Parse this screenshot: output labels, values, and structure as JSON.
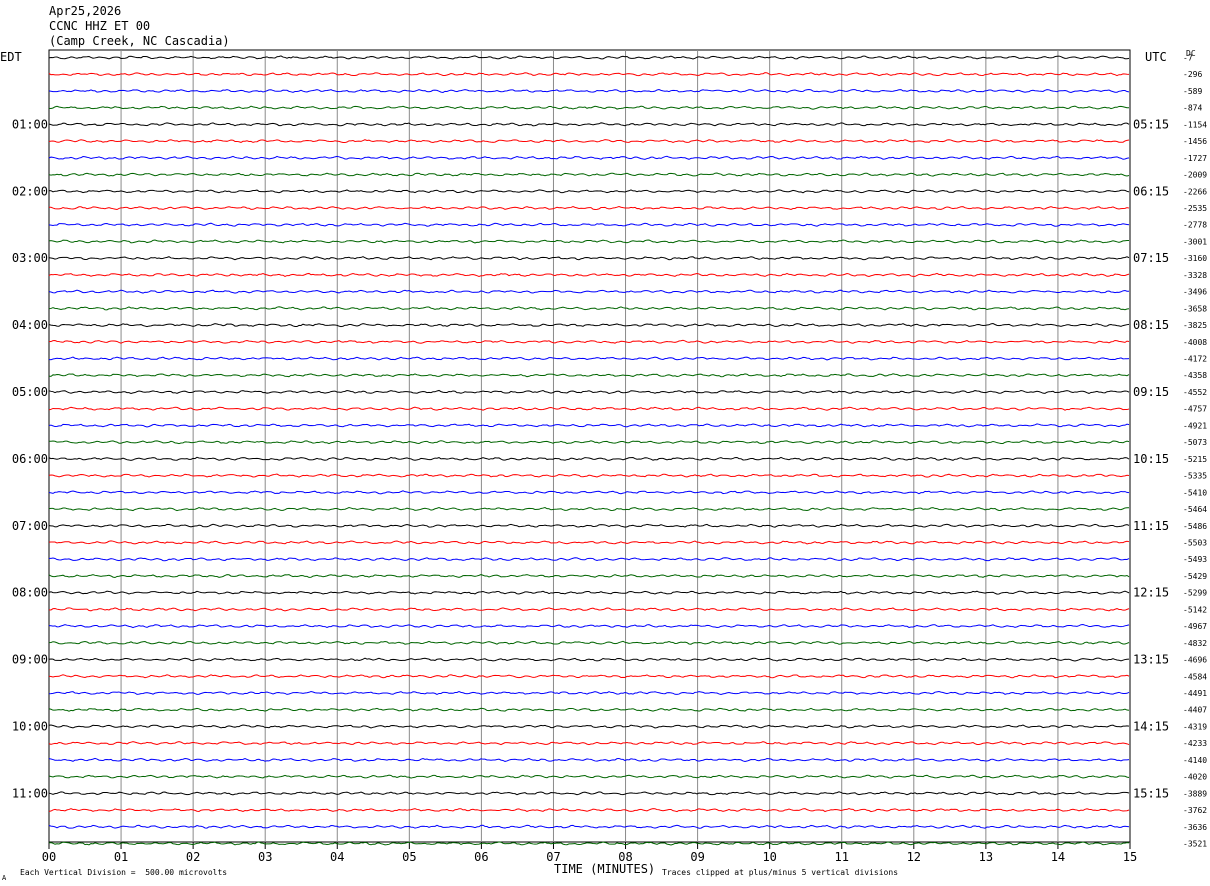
{
  "header": {
    "date": "Apr25,2026",
    "station": "CCNC HHZ ET 00",
    "location": "(Camp Creek, NC Cascadia)"
  },
  "left_axis_label": "EDT",
  "right_axis_label": "UTC",
  "dc_label": "DC",
  "footer": {
    "xlabel": "TIME (MINUTES)",
    "scale_note": "Each Vertical Division =  500.00 microvolts",
    "clip_note": "Traces clipped at plus/minus 5 vertical divisions",
    "corner_mark": "A"
  },
  "colors": [
    "#000000",
    "#ff0000",
    "#0000ff",
    "#006400"
  ],
  "chart_data": {
    "type": "line",
    "title": "CCNC HHZ ET 00",
    "xlabel": "TIME (MINUTES)",
    "xlim": [
      0,
      15
    ],
    "x_ticks": [
      "00",
      "01",
      "02",
      "03",
      "04",
      "05",
      "06",
      "07",
      "08",
      "09",
      "10",
      "11",
      "12",
      "13",
      "14",
      "15"
    ],
    "left_time_labels": [
      "01:00",
      "02:00",
      "03:00",
      "04:00",
      "05:00",
      "06:00",
      "07:00",
      "08:00",
      "09:00",
      "10:00",
      "11:00"
    ],
    "right_time_labels": [
      "05:15",
      "06:15",
      "07:15",
      "08:15",
      "09:15",
      "10:15",
      "11:15",
      "12:15",
      "13:15",
      "14:15",
      "15:15"
    ],
    "trace_count": 48,
    "traces_per_hour": 4,
    "dc_offsets": [
      "-7",
      "-296",
      "-589",
      "-874",
      "-1154",
      "-1456",
      "-1727",
      "-2009",
      "-2266",
      "-2535",
      "-2778",
      "-3001",
      "-3160",
      "-3328",
      "-3496",
      "-3658",
      "-3825",
      "-4008",
      "-4172",
      "-4358",
      "-4552",
      "-4757",
      "-4921",
      "-5073",
      "-5215",
      "-5335",
      "-5410",
      "-5464",
      "-5486",
      "-5503",
      "-5493",
      "-5429",
      "-5299",
      "-5142",
      "-4967",
      "-4832",
      "-4696",
      "-4584",
      "-4491",
      "-4407",
      "-4319",
      "-4233",
      "-4140",
      "-4020",
      "-3889",
      "-3762",
      "-3636",
      "-3521"
    ]
  }
}
